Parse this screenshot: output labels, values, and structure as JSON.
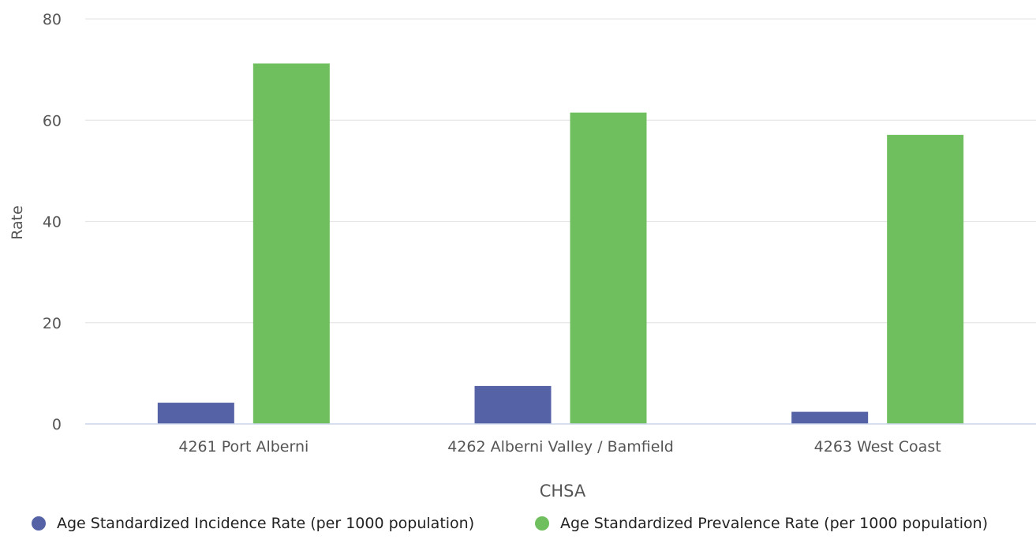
{
  "chart_data": {
    "type": "bar",
    "categories": [
      "4261 Port Alberni",
      "4262 Alberni Valley / Bamfield",
      "4263 West Coast"
    ],
    "series": [
      {
        "name": "Age Standardized Incidence Rate (per 1000 population)",
        "values": [
          4.2,
          7.5,
          2.4
        ],
        "color": "#5563a6"
      },
      {
        "name": "Age Standardized Prevalence Rate (per 1000 population)",
        "values": [
          71.2,
          61.5,
          57.1
        ],
        "color": "#70bf5e"
      }
    ],
    "xlabel": "CHSA",
    "ylabel": "Rate",
    "ylim": [
      0,
      80
    ],
    "yticks": [
      0,
      20,
      40,
      60,
      80
    ],
    "grid": true,
    "legend_placement": "bottom"
  },
  "colors": {
    "grid": "#e6e6e6",
    "axis_line": "#ccd6eb",
    "tick_text": "#555555",
    "title_text": "#555555",
    "legend_text": "#222222"
  }
}
